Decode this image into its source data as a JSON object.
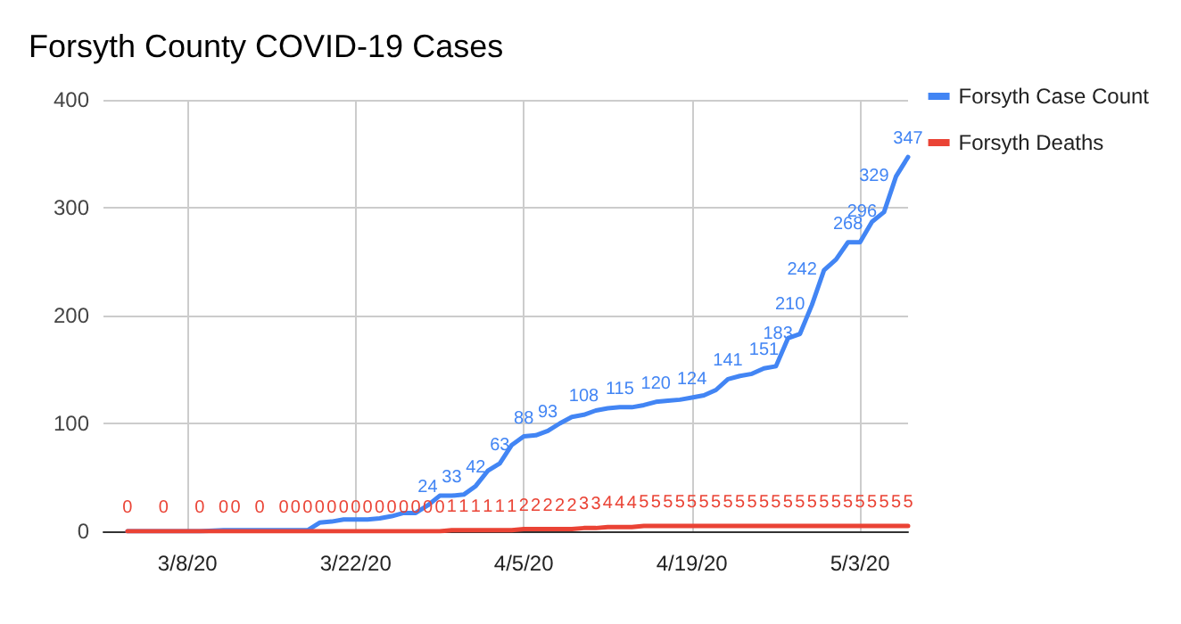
{
  "chart_data": {
    "type": "line",
    "title": "Forsyth County COVID-19 Cases",
    "x": [
      "2020-03-03",
      "2020-03-06",
      "2020-03-09",
      "2020-03-11",
      "2020-03-12",
      "2020-03-14",
      "2020-03-16",
      "2020-03-17",
      "2020-03-18",
      "2020-03-19",
      "2020-03-20",
      "2020-03-21",
      "2020-03-22",
      "2020-03-23",
      "2020-03-24",
      "2020-03-25",
      "2020-03-26",
      "2020-03-27",
      "2020-03-28",
      "2020-03-29",
      "2020-03-30",
      "2020-03-31",
      "2020-04-01",
      "2020-04-02",
      "2020-04-03",
      "2020-04-04",
      "2020-04-05",
      "2020-04-06",
      "2020-04-07",
      "2020-04-08",
      "2020-04-09",
      "2020-04-10",
      "2020-04-11",
      "2020-04-12",
      "2020-04-13",
      "2020-04-14",
      "2020-04-15",
      "2020-04-16",
      "2020-04-17",
      "2020-04-18",
      "2020-04-19",
      "2020-04-20",
      "2020-04-21",
      "2020-04-22",
      "2020-04-23",
      "2020-04-24",
      "2020-04-25",
      "2020-04-26",
      "2020-04-27",
      "2020-04-28",
      "2020-04-29",
      "2020-04-30",
      "2020-05-01",
      "2020-05-02",
      "2020-05-03",
      "2020-05-04",
      "2020-05-05",
      "2020-05-06",
      "2020-05-07"
    ],
    "series": [
      {
        "name": "Forsyth Case Count",
        "color": "#4285f4",
        "values": [
          0,
          0,
          0,
          1,
          1,
          1,
          1,
          1,
          1,
          8,
          9,
          11,
          11,
          11,
          12,
          14,
          17,
          17,
          24,
          33,
          33,
          34,
          42,
          56,
          63,
          80,
          88,
          89,
          93,
          100,
          106,
          108,
          112,
          114,
          115,
          115,
          117,
          120,
          121,
          122,
          124,
          126,
          131,
          141,
          144,
          146,
          151,
          153,
          179,
          183,
          210,
          242,
          252,
          268,
          268,
          287,
          296,
          329,
          347
        ],
        "value_labels": [
          null,
          null,
          null,
          null,
          null,
          null,
          null,
          null,
          null,
          null,
          null,
          null,
          null,
          null,
          null,
          null,
          null,
          null,
          "24",
          null,
          "33",
          null,
          "42",
          null,
          "63",
          null,
          "88",
          null,
          "93",
          null,
          null,
          "108",
          null,
          null,
          "115",
          null,
          null,
          "120",
          null,
          null,
          "124",
          null,
          null,
          "141",
          null,
          null,
          "151",
          null,
          null,
          "183",
          "210",
          "242",
          null,
          "268",
          null,
          null,
          "296",
          "329",
          "347"
        ]
      },
      {
        "name": "Forsyth Deaths",
        "color": "#ea4335",
        "values": [
          0,
          0,
          0,
          0,
          0,
          0,
          0,
          0,
          0,
          0,
          0,
          0,
          0,
          0,
          0,
          0,
          0,
          0,
          0,
          0,
          1,
          1,
          1,
          1,
          1,
          1,
          2,
          2,
          2,
          2,
          2,
          3,
          3,
          4,
          4,
          4,
          5,
          5,
          5,
          5,
          5,
          5,
          5,
          5,
          5,
          5,
          5,
          5,
          5,
          5,
          5,
          5,
          5,
          5,
          5,
          5,
          5,
          5,
          5
        ],
        "value_labels": [
          "0",
          "0",
          "0",
          "0",
          "0",
          "0",
          "0",
          "0",
          "0",
          "0",
          "0",
          "0",
          "0",
          "0",
          "0",
          "0",
          "0",
          "0",
          "0",
          "0",
          "1",
          "1",
          "1",
          "1",
          "1",
          "1",
          "2",
          "2",
          "2",
          "2",
          "2",
          "3",
          "3",
          "4",
          "4",
          "4",
          "5",
          "5",
          "5",
          "5",
          "5",
          "5",
          "5",
          "5",
          "5",
          "5",
          "5",
          "5",
          "5",
          "5",
          "5",
          "5",
          "5",
          "5",
          "5",
          "5",
          "5",
          "5",
          "5"
        ]
      }
    ],
    "xlim": [
      "2020-03-01",
      "2020-05-07"
    ],
    "xticks": [
      {
        "value": "2020-03-08",
        "label": "3/8/20"
      },
      {
        "value": "2020-03-22",
        "label": "3/22/20"
      },
      {
        "value": "2020-04-05",
        "label": "4/5/20"
      },
      {
        "value": "2020-04-19",
        "label": "4/19/20"
      },
      {
        "value": "2020-05-03",
        "label": "5/3/20"
      }
    ],
    "ylim": [
      0,
      400
    ],
    "yticks": [
      0,
      100,
      200,
      300,
      400
    ],
    "grid": true,
    "legend": "top right",
    "marker": "none"
  }
}
